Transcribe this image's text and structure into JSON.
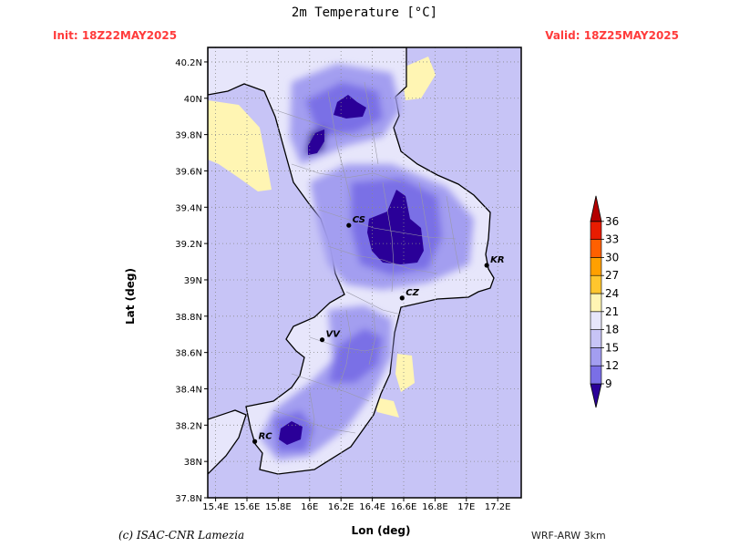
{
  "title": "2m Temperature [°C]",
  "init": "Init: 18Z22MAY2025",
  "valid": "Valid: 18Z25MAY2025",
  "xlabel": "Lon (deg)",
  "ylabel": "Lat (deg)",
  "credit": "(c) ISAC-CNR Lamezia",
  "model": "WRF-ARW 3km",
  "axes": {
    "lon_ticks": [
      "15.4E",
      "15.6E",
      "15.8E",
      "16E",
      "16.2E",
      "16.4E",
      "16.6E",
      "16.8E",
      "17E",
      "17.2E"
    ],
    "lat_ticks": [
      "40.2N",
      "40N",
      "39.8N",
      "39.6N",
      "39.4N",
      "39.2N",
      "39N",
      "38.8N",
      "38.6N",
      "38.4N",
      "38.2N",
      "38N",
      "37.8N"
    ],
    "lon_range": [
      15.35,
      17.35
    ],
    "lat_range": [
      37.8,
      40.28
    ],
    "grid": true
  },
  "colorbar": {
    "labels": [
      "9",
      "12",
      "15",
      "18",
      "21",
      "24",
      "27",
      "30",
      "33",
      "36"
    ],
    "colors": [
      "#2a0098",
      "#7a6fe6",
      "#a39ef0",
      "#c7c4f6",
      "#e7e6fb",
      "#fff5b3",
      "#ffc62e",
      "#ffa000",
      "#ff6000",
      "#e81c00",
      "#b40000"
    ]
  },
  "cities": [
    {
      "label": "CS",
      "lon": 16.25,
      "lat": 39.3
    },
    {
      "label": "KR",
      "lon": 17.13,
      "lat": 39.08
    },
    {
      "label": "CZ",
      "lon": 16.59,
      "lat": 38.9
    },
    {
      "label": "VV",
      "lon": 16.08,
      "lat": 38.67
    },
    {
      "label": "RC",
      "lon": 15.65,
      "lat": 38.11
    }
  ]
}
